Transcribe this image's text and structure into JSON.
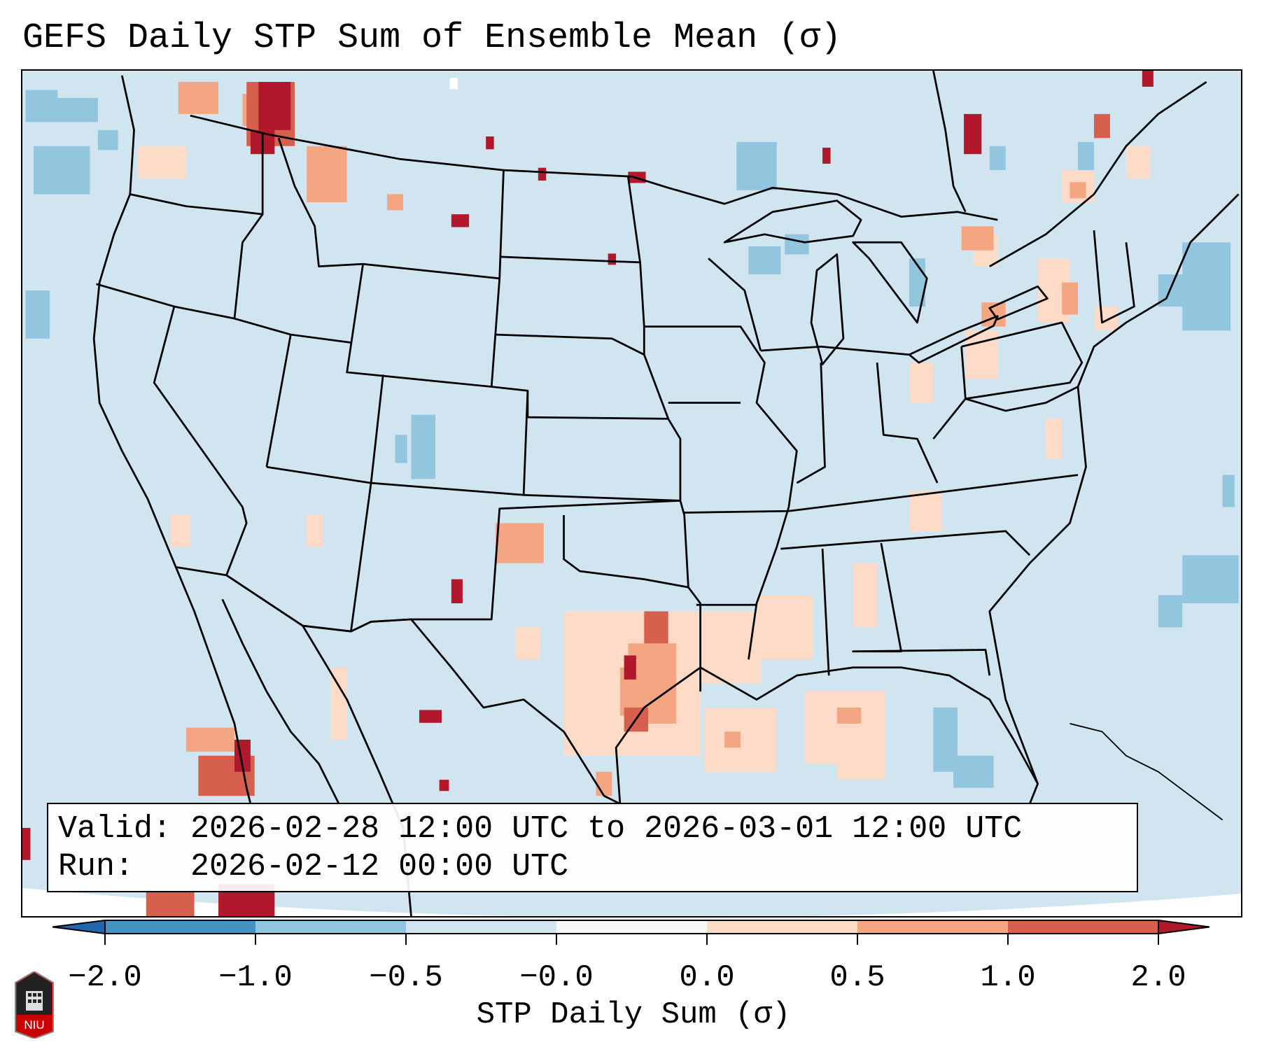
{
  "title": "GEFS Daily STP Sum of Ensemble Mean (σ)",
  "info": {
    "valid_line": "Valid: 2026-02-28 12:00 UTC to 2026-03-01 12:00 UTC",
    "run_line": "Run:   2026-02-12 00:00 UTC"
  },
  "colorbar": {
    "label": "STP Daily Sum (σ)",
    "ticks": [
      "−2.0",
      "−1.0",
      "−0.5",
      "−0.0",
      "0.0",
      "0.5",
      "1.0",
      "2.0"
    ],
    "colors": [
      "#2166ac",
      "#4393c3",
      "#92c5de",
      "#d1e5f0",
      "#f7f7f7",
      "#fddbc7",
      "#f4a582",
      "#d6604d",
      "#b2182b"
    ],
    "extend": "both"
  },
  "logo": {
    "text": "NIU"
  }
}
